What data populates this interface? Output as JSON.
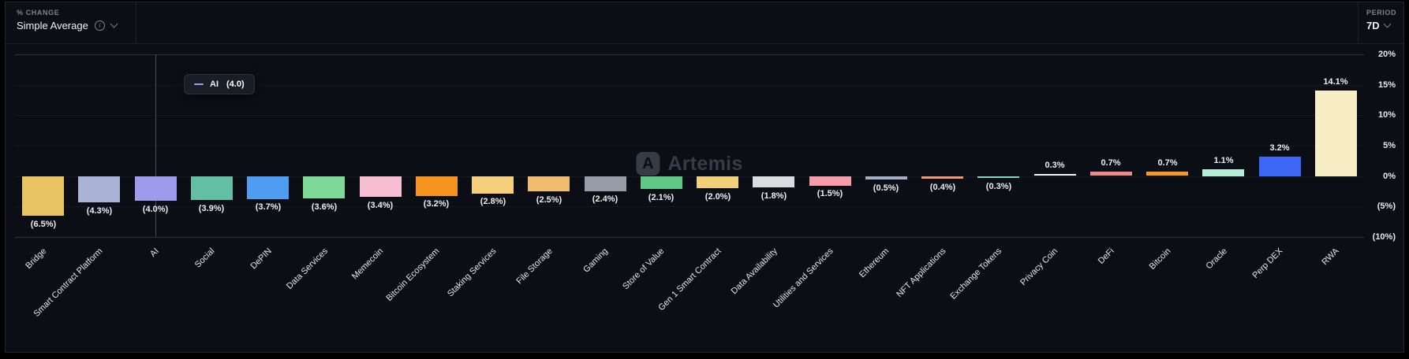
{
  "header": {
    "metric_label": "% CHANGE",
    "metric_value": "Simple Average",
    "period_label": "PERIOD",
    "period_value": "7D"
  },
  "tooltip": {
    "series": "AI",
    "value": "(4.0)"
  },
  "watermark": {
    "text": "Artemis",
    "logo_letter": "A"
  },
  "chart_data": {
    "type": "bar",
    "title": "% Change by Sector (Simple Average)",
    "xlabel": "",
    "ylabel": "% Change",
    "period": "7D",
    "ylim": [
      -10,
      20
    ],
    "grid": true,
    "legend_position": "none",
    "y_ticks": [
      "20%",
      "15%",
      "10%",
      "5%",
      "0%",
      "(5%)",
      "(10%)"
    ],
    "y_tick_values": [
      20,
      15,
      10,
      5,
      0,
      -5,
      -10
    ],
    "highlighted_category": "AI",
    "categories": [
      "Bridge",
      "Smart Contract Platform",
      "AI",
      "Social",
      "DePIN",
      "Data Services",
      "Memecoin",
      "Bitcoin Ecosystem",
      "Staking Services",
      "File Storage",
      "Gaming",
      "Store of Value",
      "Gen 1 Smart Contract",
      "Data Availability",
      "Utilities and Services",
      "Ethereum",
      "NFT Applications",
      "Exchange Tokens",
      "Privacy Coin",
      "DeFi",
      "Bitcoin",
      "Oracle",
      "Perp DEX",
      "RWA"
    ],
    "values": [
      -6.5,
      -4.3,
      -4.0,
      -3.9,
      -3.7,
      -3.6,
      -3.4,
      -3.2,
      -2.8,
      -2.5,
      -2.4,
      -2.1,
      -2.0,
      -1.8,
      -1.5,
      -0.5,
      -0.4,
      -0.3,
      0.3,
      0.7,
      0.7,
      1.1,
      3.2,
      14.1
    ],
    "value_labels": [
      "(6.5%)",
      "(4.3%)",
      "(4.0%)",
      "(3.9%)",
      "(3.7%)",
      "(3.6%)",
      "(3.4%)",
      "(3.2%)",
      "(2.8%)",
      "(2.5%)",
      "(2.4%)",
      "(2.1%)",
      "(2.0%)",
      "(1.8%)",
      "(1.5%)",
      "(0.5%)",
      "(0.4%)",
      "(0.3%)",
      "0.3%",
      "0.7%",
      "0.7%",
      "1.1%",
      "3.2%",
      "14.1%"
    ],
    "colors": [
      "#eac463",
      "#aab3d6",
      "#9d9bec",
      "#63bfa2",
      "#4e9df2",
      "#7ed898",
      "#f8bed2",
      "#f6941d",
      "#f6cf7d",
      "#f0bb6d",
      "#959ca8",
      "#60c887",
      "#f2d077",
      "#dadde0",
      "#f79cab",
      "#a5b0c5",
      "#ef9a72",
      "#83d6c2",
      "#f2f4f6",
      "#ee8a86",
      "#f69a1f",
      "#b5edd6",
      "#3d68f5",
      "#f8eec6"
    ]
  }
}
